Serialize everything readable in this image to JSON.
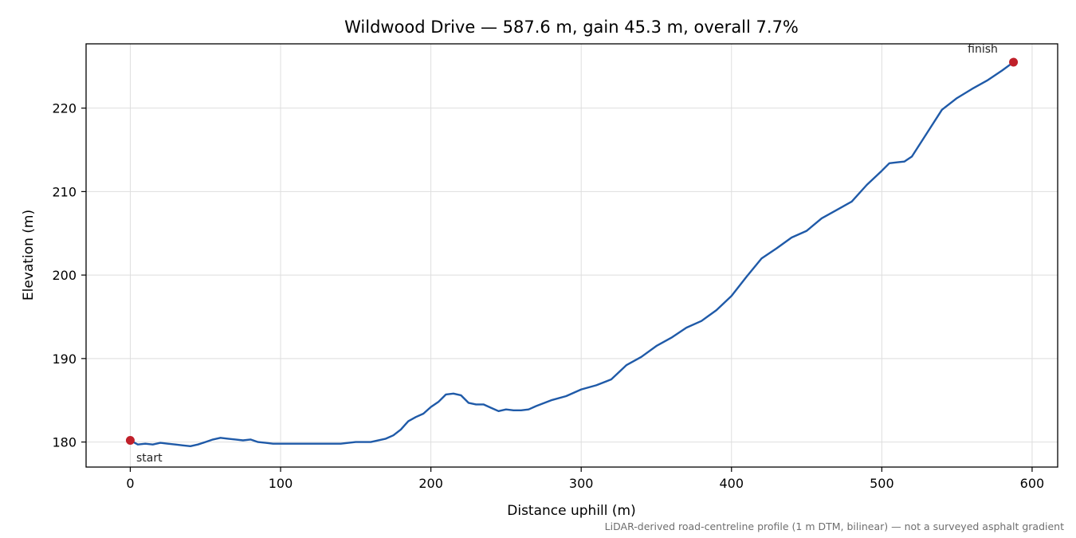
{
  "chart_data": {
    "type": "line",
    "title": "Wildwood Drive — 587.6 m, gain 45.3 m, overall 7.7%",
    "xlabel": "Distance uphill (m)",
    "ylabel": "Elevation (m)",
    "xlim": [
      -29.4,
      617.0
    ],
    "ylim": [
      177.0,
      227.7
    ],
    "xticks": [
      0,
      100,
      200,
      300,
      400,
      500,
      600
    ],
    "yticks": [
      180,
      190,
      200,
      210,
      220
    ],
    "grid": true,
    "footnote": "LiDAR-derived road-centreline profile (1 m DTM, bilinear) — not a surveyed asphalt gradient",
    "line_color": "#1f5aa8",
    "marker_color": "#c0202a",
    "series": [
      {
        "x": [
          0,
          5,
          10,
          15,
          20,
          25,
          30,
          35,
          40,
          45,
          50,
          55,
          60,
          65,
          70,
          75,
          80,
          85,
          90,
          95,
          100,
          110,
          120,
          130,
          140,
          150,
          160,
          170,
          175,
          180,
          185,
          190,
          195,
          200,
          205,
          210,
          215,
          220,
          225,
          230,
          235,
          240,
          245,
          250,
          255,
          260,
          265,
          270,
          280,
          290,
          300,
          310,
          320,
          330,
          340,
          350,
          360,
          370,
          380,
          390,
          400,
          410,
          420,
          430,
          440,
          450,
          460,
          470,
          480,
          490,
          500,
          505,
          510,
          515,
          520,
          530,
          540,
          550,
          560,
          570,
          580,
          587.6
        ],
        "y": [
          180.2,
          179.7,
          179.8,
          179.7,
          179.9,
          179.8,
          179.7,
          179.6,
          179.5,
          179.7,
          180.0,
          180.3,
          180.5,
          180.4,
          180.3,
          180.2,
          180.3,
          180.0,
          179.9,
          179.8,
          179.8,
          179.8,
          179.8,
          179.8,
          179.8,
          180.0,
          180.0,
          180.4,
          180.8,
          181.5,
          182.5,
          183.0,
          183.4,
          184.2,
          184.8,
          185.7,
          185.8,
          185.6,
          184.7,
          184.5,
          184.5,
          184.1,
          183.7,
          183.9,
          183.8,
          183.8,
          183.9,
          184.3,
          185.0,
          185.5,
          186.3,
          186.8,
          187.5,
          189.2,
          190.2,
          191.5,
          192.5,
          193.7,
          194.5,
          195.8,
          197.5,
          199.8,
          202.0,
          203.2,
          204.5,
          205.3,
          206.8,
          207.8,
          208.8,
          210.8,
          212.5,
          213.4,
          213.5,
          213.6,
          214.2,
          217.0,
          219.8,
          221.2,
          222.3,
          223.3,
          224.5,
          225.5
        ]
      }
    ],
    "annotations": [
      {
        "label": "start",
        "x": 0,
        "y": 180.2
      },
      {
        "label": "finish",
        "x": 587.6,
        "y": 225.5
      }
    ]
  }
}
